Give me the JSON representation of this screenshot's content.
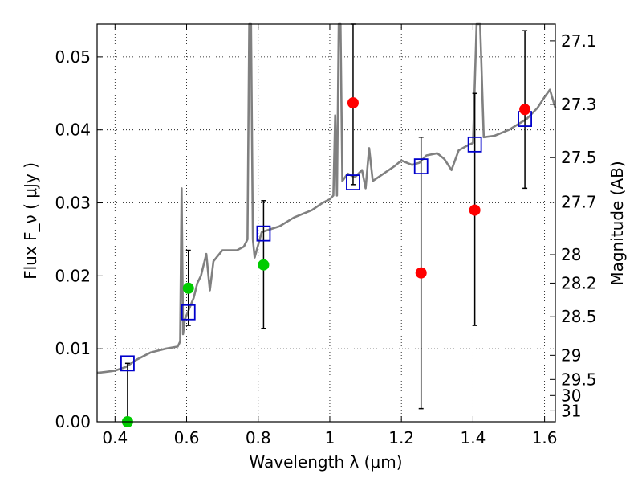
{
  "chart_data": {
    "type": "scatter",
    "xlabel": "Wavelength  λ (μm)",
    "ylabel": "Flux  F_ν  ( μJy )",
    "y2label": "Magnitude (AB)",
    "xlim": [
      0.35,
      1.63
    ],
    "ylim": [
      0.0,
      0.0545
    ],
    "grid": true,
    "xticks": [
      {
        "value": 0.4,
        "label": "0.4"
      },
      {
        "value": 0.6,
        "label": "0.6"
      },
      {
        "value": 0.8,
        "label": "0.8"
      },
      {
        "value": 1.0,
        "label": "1"
      },
      {
        "value": 1.2,
        "label": "1.2"
      },
      {
        "value": 1.4,
        "label": "1.4"
      },
      {
        "value": 1.6,
        "label": "1.6"
      }
    ],
    "yticks": [
      {
        "value": 0.0,
        "label": "0.00"
      },
      {
        "value": 0.01,
        "label": "0.01"
      },
      {
        "value": 0.02,
        "label": "0.02"
      },
      {
        "value": 0.03,
        "label": "0.03"
      },
      {
        "value": 0.04,
        "label": "0.04"
      },
      {
        "value": 0.05,
        "label": "0.05"
      }
    ],
    "y2ticks": [
      {
        "label": "27.1",
        "flux": 0.0522
      },
      {
        "label": "27.3",
        "flux": 0.0435
      },
      {
        "label": "27.5",
        "flux": 0.0362
      },
      {
        "label": "27.7",
        "flux": 0.0301
      },
      {
        "label": "28",
        "flux": 0.0229
      },
      {
        "label": "28.2",
        "flux": 0.019
      },
      {
        "label": "28.5",
        "flux": 0.0144
      },
      {
        "label": "29",
        "flux": 0.0091
      },
      {
        "label": "29.5",
        "flux": 0.0058
      },
      {
        "label": "30",
        "flux": 0.0036
      },
      {
        "label": "31",
        "flux": 0.0015
      }
    ],
    "spectrum": {
      "color": "#808080",
      "points": [
        [
          0.35,
          0.0067
        ],
        [
          0.37,
          0.0068
        ],
        [
          0.4,
          0.007
        ],
        [
          0.43,
          0.0075
        ],
        [
          0.46,
          0.0085
        ],
        [
          0.5,
          0.0095
        ],
        [
          0.54,
          0.01
        ],
        [
          0.575,
          0.0103
        ],
        [
          0.582,
          0.011
        ],
        [
          0.586,
          0.032
        ],
        [
          0.59,
          0.012
        ],
        [
          0.595,
          0.014
        ],
        [
          0.62,
          0.017
        ],
        [
          0.63,
          0.019
        ],
        [
          0.64,
          0.02
        ],
        [
          0.655,
          0.023
        ],
        [
          0.665,
          0.018
        ],
        [
          0.675,
          0.022
        ],
        [
          0.7,
          0.0235
        ],
        [
          0.74,
          0.0235
        ],
        [
          0.76,
          0.024
        ],
        [
          0.77,
          0.025
        ],
        [
          0.775,
          0.0545
        ],
        [
          0.78,
          0.0545
        ],
        [
          0.785,
          0.025
        ],
        [
          0.79,
          0.0225
        ],
        [
          0.81,
          0.026
        ],
        [
          0.86,
          0.0268
        ],
        [
          0.9,
          0.028
        ],
        [
          0.95,
          0.029
        ],
        [
          0.98,
          0.03
        ],
        [
          1.0,
          0.0305
        ],
        [
          1.01,
          0.031
        ],
        [
          1.015,
          0.042
        ],
        [
          1.02,
          0.031
        ],
        [
          1.025,
          0.0545
        ],
        [
          1.03,
          0.0545
        ],
        [
          1.035,
          0.033
        ],
        [
          1.05,
          0.034
        ],
        [
          1.07,
          0.0335
        ],
        [
          1.09,
          0.0345
        ],
        [
          1.1,
          0.032
        ],
        [
          1.11,
          0.0375
        ],
        [
          1.12,
          0.033
        ],
        [
          1.15,
          0.034
        ],
        [
          1.18,
          0.035
        ],
        [
          1.2,
          0.0358
        ],
        [
          1.23,
          0.0352
        ],
        [
          1.25,
          0.0355
        ],
        [
          1.27,
          0.0365
        ],
        [
          1.3,
          0.0368
        ],
        [
          1.32,
          0.036
        ],
        [
          1.34,
          0.0345
        ],
        [
          1.36,
          0.0372
        ],
        [
          1.39,
          0.038
        ],
        [
          1.4,
          0.0382
        ],
        [
          1.41,
          0.0545
        ],
        [
          1.42,
          0.0545
        ],
        [
          1.43,
          0.039
        ],
        [
          1.46,
          0.0392
        ],
        [
          1.5,
          0.04
        ],
        [
          1.55,
          0.0415
        ],
        [
          1.58,
          0.043
        ],
        [
          1.6,
          0.0445
        ],
        [
          1.615,
          0.0455
        ],
        [
          1.63,
          0.043
        ]
      ]
    },
    "series": [
      {
        "marker": "open-square",
        "color": "#0000cc",
        "points": [
          {
            "x": 0.435,
            "y": 0.008
          },
          {
            "x": 0.605,
            "y": 0.015
          },
          {
            "x": 0.815,
            "y": 0.0258
          },
          {
            "x": 1.065,
            "y": 0.0328
          },
          {
            "x": 1.255,
            "y": 0.035
          },
          {
            "x": 1.405,
            "y": 0.038
          },
          {
            "x": 1.545,
            "y": 0.0415
          }
        ]
      },
      {
        "marker": "filled-circle",
        "color": "#00cc00",
        "points": [
          {
            "x": 0.435,
            "y": 0.0,
            "err_lo": 0.0,
            "err_hi": 0.008
          },
          {
            "x": 0.605,
            "y": 0.0183,
            "err_lo": 0.0132,
            "err_hi": 0.0235
          },
          {
            "x": 0.815,
            "y": 0.0215,
            "err_lo": 0.0128,
            "err_hi": 0.0303
          }
        ]
      },
      {
        "marker": "filled-circle",
        "color": "#ff0000",
        "points": [
          {
            "x": 1.065,
            "y": 0.0437,
            "err_lo": 0.0325,
            "err_hi": 0.0545
          },
          {
            "x": 1.255,
            "y": 0.0204,
            "err_lo": 0.0018,
            "err_hi": 0.039
          },
          {
            "x": 1.405,
            "y": 0.029,
            "err_lo": 0.0132,
            "err_hi": 0.045
          },
          {
            "x": 1.545,
            "y": 0.0428,
            "err_lo": 0.032,
            "err_hi": 0.0536
          }
        ]
      }
    ]
  }
}
